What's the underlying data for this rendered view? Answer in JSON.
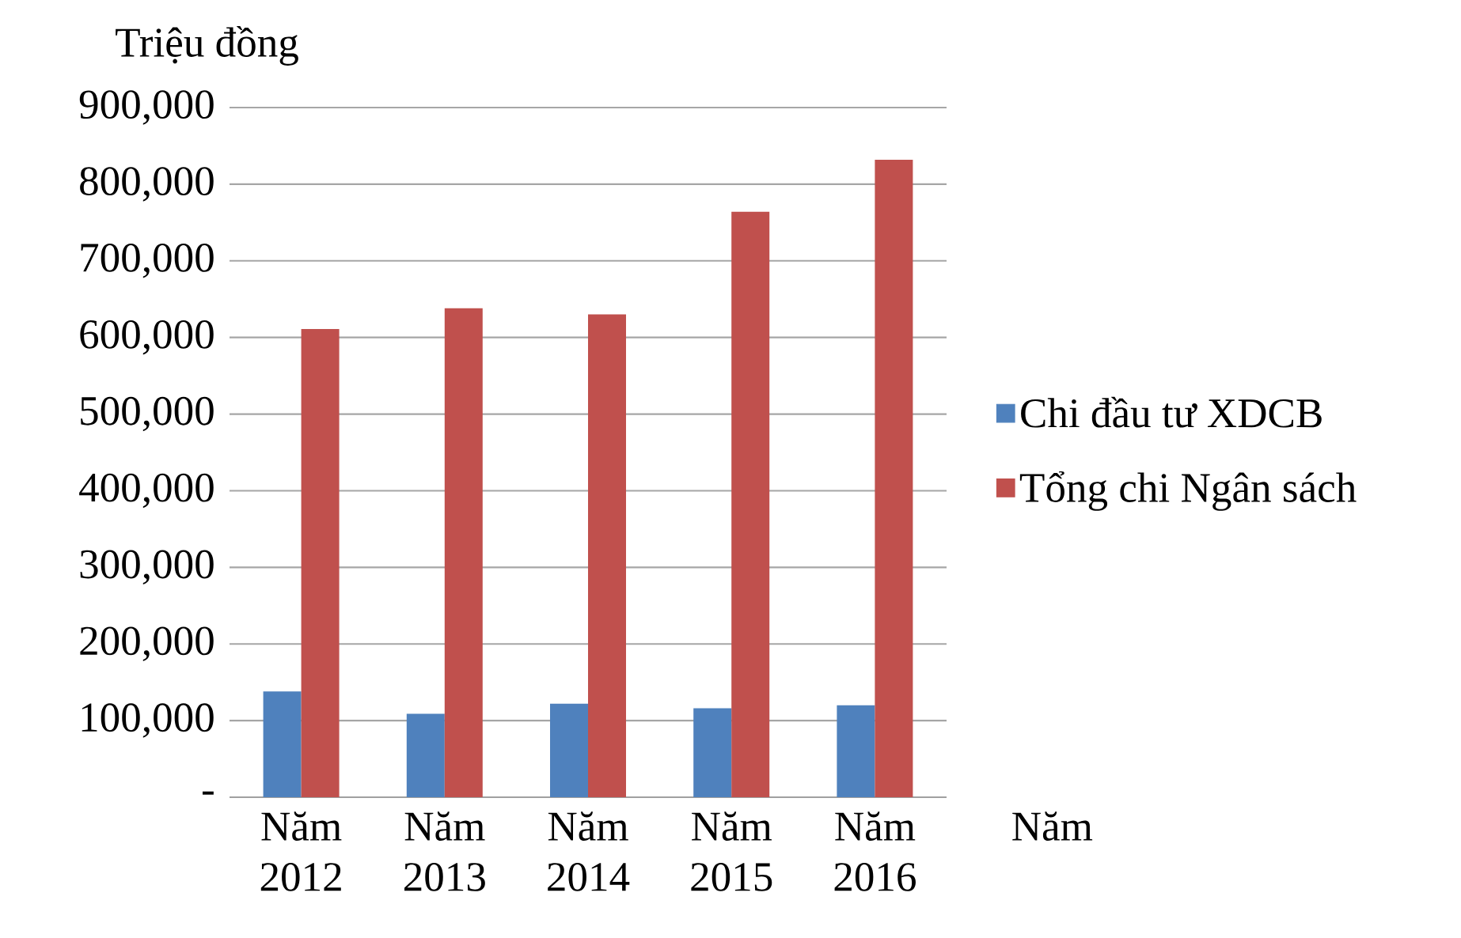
{
  "chart_data": {
    "type": "bar",
    "ylabel": "Triệu đồng",
    "xlabel": "Năm",
    "categories": [
      "Năm 2012",
      "Năm 2013",
      "Năm 2014",
      "Năm 2015",
      "Năm 2016"
    ],
    "series": [
      {
        "name": "Chi đầu tư XDCB",
        "color": "#4f81bd",
        "values": [
          138000,
          109000,
          122000,
          116000,
          120000
        ]
      },
      {
        "name": "Tổng chi Ngân sách",
        "color": "#c0504d",
        "values": [
          611000,
          638000,
          630000,
          764000,
          832000
        ]
      }
    ],
    "ylim": [
      0,
      900000
    ],
    "yticks": [
      {
        "value": 0,
        "label": "-"
      },
      {
        "value": 100000,
        "label": "100,000"
      },
      {
        "value": 200000,
        "label": "200,000"
      },
      {
        "value": 300000,
        "label": "300,000"
      },
      {
        "value": 400000,
        "label": "400,000"
      },
      {
        "value": 500000,
        "label": "500,000"
      },
      {
        "value": 600000,
        "label": "600,000"
      },
      {
        "value": 700000,
        "label": "700,000"
      },
      {
        "value": 800000,
        "label": "800,000"
      },
      {
        "value": 900000,
        "label": "900,000"
      }
    ],
    "grid": "y",
    "legend": "right"
  }
}
